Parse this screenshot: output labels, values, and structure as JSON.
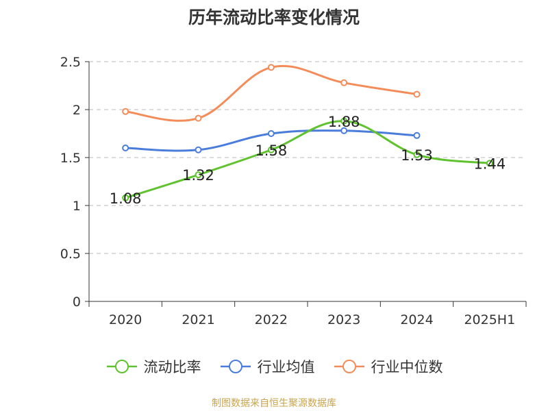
{
  "title": "历年流动比率变化情况",
  "source": "制图数据来自恒生聚源数据库",
  "chart_data": {
    "type": "line",
    "title": "历年流动比率变化情况",
    "categories": [
      "2020",
      "2021",
      "2022",
      "2023",
      "2024",
      "2025H1"
    ],
    "ylim": [
      0,
      2.5
    ],
    "yticks": [
      "0",
      "0.5",
      "1",
      "1.5",
      "2",
      "2.5"
    ],
    "grid": true,
    "legend_position": "bottom",
    "series": [
      {
        "name": "流动比率",
        "color": "#5fc22e",
        "values": [
          1.08,
          1.32,
          1.58,
          1.88,
          1.53,
          1.44
        ],
        "labels": [
          "1.08",
          "1.32",
          "1.58",
          "1.88",
          "1.53",
          "1.44"
        ]
      },
      {
        "name": "行业均值",
        "color": "#4a7ddb",
        "values": [
          1.6,
          1.58,
          1.75,
          1.78,
          1.73,
          null
        ]
      },
      {
        "name": "行业中位数",
        "color": "#f48c59",
        "values": [
          1.98,
          1.91,
          2.44,
          2.28,
          2.16,
          null
        ]
      }
    ]
  }
}
